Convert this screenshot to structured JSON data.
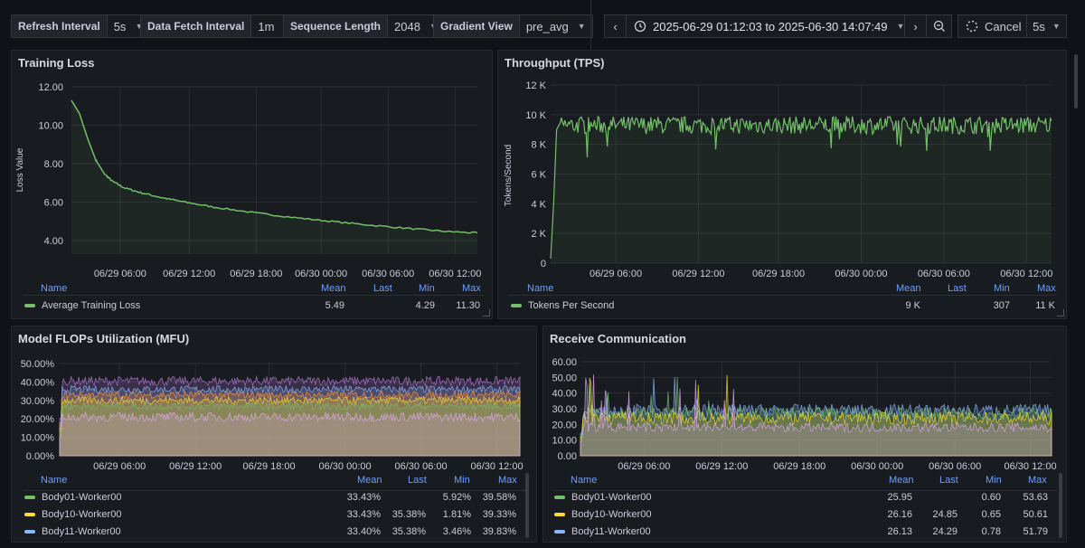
{
  "toolbar": {
    "refresh_interval": {
      "label": "Refresh Interval",
      "value": "5s"
    },
    "data_fetch_interval": {
      "label": "Data Fetch Interval",
      "value": "1m"
    },
    "sequence_length": {
      "label": "Sequence Length",
      "value": "2048"
    },
    "gradient_view": {
      "label": "Gradient View",
      "value": "pre_avg"
    },
    "time_range": "2025-06-29 01:12:03 to 2025-06-30 14:07:49",
    "cancel_label": "Cancel",
    "refresh_value": "5s"
  },
  "panels": {
    "loss": {
      "title": "Training Loss",
      "ylabel": "Loss Value",
      "legend_headers": {
        "name": "Name",
        "mean": "Mean",
        "last": "Last",
        "min": "Min",
        "max": "Max"
      },
      "rows": [
        {
          "name": "Average Training Loss",
          "mean": "5.49",
          "last": "",
          "min": "4.29",
          "max": "11.30",
          "color": "#73bf69"
        }
      ]
    },
    "throughput": {
      "title": "Throughput (TPS)",
      "ylabel": "Tokens/Second",
      "legend_headers": {
        "name": "Name",
        "mean": "Mean",
        "last": "Last",
        "min": "Min",
        "max": "Max"
      },
      "rows": [
        {
          "name": "Tokens Per Second",
          "mean": "9 K",
          "last": "",
          "min": "307",
          "max": "11 K",
          "color": "#73bf69"
        }
      ]
    },
    "mfu": {
      "title": "Model FLOPs Utilization (MFU)",
      "legend_headers": {
        "name": "Name",
        "mean": "Mean",
        "last": "Last",
        "min": "Min",
        "max": "Max"
      },
      "rows": [
        {
          "name": "Body01-Worker00",
          "mean": "33.43%",
          "last": "",
          "min": "5.92%",
          "max": "39.58%",
          "color": "#73bf69"
        },
        {
          "name": "Body10-Worker00",
          "mean": "33.43%",
          "last": "35.38%",
          "min": "1.81%",
          "max": "39.33%",
          "color": "#fade2a"
        },
        {
          "name": "Body11-Worker00",
          "mean": "33.40%",
          "last": "35.38%",
          "min": "3.46%",
          "max": "39.83%",
          "color": "#8ab8ff"
        }
      ]
    },
    "recv": {
      "title": "Receive Communication",
      "legend_headers": {
        "name": "Name",
        "mean": "Mean",
        "last": "Last",
        "min": "Min",
        "max": "Max"
      },
      "rows": [
        {
          "name": "Body01-Worker00",
          "mean": "25.95",
          "last": "",
          "min": "0.60",
          "max": "53.63",
          "color": "#73bf69"
        },
        {
          "name": "Body10-Worker00",
          "mean": "26.16",
          "last": "24.85",
          "min": "0.65",
          "max": "50.61",
          "color": "#fade2a"
        },
        {
          "name": "Body11-Worker00",
          "mean": "26.13",
          "last": "24.29",
          "min": "0.78",
          "max": "51.79",
          "color": "#8ab8ff"
        }
      ]
    }
  },
  "chart_data": [
    {
      "type": "line",
      "title": "Training Loss",
      "ylabel": "Loss Value",
      "yticks": [
        "12.00",
        "10.00",
        "8.00",
        "6.00",
        "4.00"
      ],
      "ylim": [
        3.3,
        12
      ],
      "xticks": [
        "06/29 06:00",
        "06/29 12:00",
        "06/29 18:00",
        "06/30 00:00",
        "06/30 06:00",
        "06/30 12:00"
      ],
      "series": [
        {
          "name": "Average Training Loss",
          "color": "#73bf69",
          "points": [
            [
              0,
              11.3
            ],
            [
              0.02,
              10.6
            ],
            [
              0.04,
              9.3
            ],
            [
              0.06,
              8.2
            ],
            [
              0.08,
              7.5
            ],
            [
              0.1,
              7.1
            ],
            [
              0.13,
              6.75
            ],
            [
              0.17,
              6.5
            ],
            [
              0.22,
              6.25
            ],
            [
              0.28,
              6.0
            ],
            [
              0.35,
              5.75
            ],
            [
              0.45,
              5.45
            ],
            [
              0.55,
              5.2
            ],
            [
              0.65,
              4.98
            ],
            [
              0.75,
              4.78
            ],
            [
              0.85,
              4.6
            ],
            [
              0.93,
              4.47
            ],
            [
              1.0,
              4.4
            ]
          ]
        }
      ]
    },
    {
      "type": "line",
      "title": "Throughput (TPS)",
      "ylabel": "Tokens/Second",
      "yticks": [
        "12 K",
        "10 K",
        "8 K",
        "6 K",
        "4 K",
        "2 K",
        "0"
      ],
      "ylim": [
        0,
        12000
      ],
      "xticks": [
        "06/29 06:00",
        "06/29 12:00",
        "06/29 18:00",
        "06/30 00:00",
        "06/30 06:00",
        "06/30 12:00"
      ],
      "series": [
        {
          "name": "Tokens Per Second",
          "color": "#73bf69",
          "baseline": 9300,
          "noise": 600,
          "start": 307
        }
      ]
    },
    {
      "type": "area",
      "title": "Model FLOPs Utilization (MFU)",
      "yticks": [
        "50.00%",
        "40.00%",
        "30.00%",
        "20.00%",
        "10.00%",
        "0.00%"
      ],
      "ylim": [
        0,
        50
      ],
      "xticks": [
        "06/29 06:00",
        "06/29 12:00",
        "06/29 18:00",
        "06/30 00:00",
        "06/30 06:00",
        "06/30 12:00"
      ],
      "series": [
        {
          "color": "#b877d9",
          "level": 40.5,
          "noise": 2.5
        },
        {
          "color": "#8ab8ff",
          "level": 36,
          "noise": 2
        },
        {
          "color": "#ff9830",
          "level": 33,
          "noise": 2
        },
        {
          "color": "#fade2a",
          "level": 30,
          "noise": 2
        },
        {
          "color": "#73bf69",
          "level": 27,
          "noise": 2
        },
        {
          "color": "#e0a8f0",
          "level": 21,
          "noise": 2.5
        }
      ]
    },
    {
      "type": "area",
      "title": "Receive Communication",
      "yticks": [
        "60.00",
        "50.00",
        "40.00",
        "30.00",
        "20.00",
        "10.00",
        "0.00"
      ],
      "ylim": [
        0,
        60
      ],
      "xticks": [
        "06/29 06:00",
        "06/29 12:00",
        "06/29 18:00",
        "06/30 00:00",
        "06/30 06:00",
        "06/30 12:00"
      ],
      "series": [
        {
          "color": "#8ab8ff",
          "level": 29,
          "noise": 4
        },
        {
          "color": "#73bf69",
          "level": 27,
          "noise": 4
        },
        {
          "color": "#fade2a",
          "level": 24,
          "noise": 4
        },
        {
          "color": "#e0a8f0",
          "level": 18,
          "noise": 3
        }
      ]
    }
  ]
}
